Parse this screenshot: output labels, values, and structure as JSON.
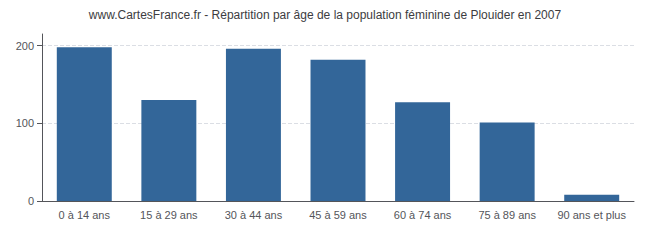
{
  "chart_data": {
    "type": "bar",
    "title": "www.CartesFrance.fr - Répartition par âge de la population féminine de Plouider en 2007",
    "categories": [
      "0 à 14 ans",
      "15 à 29 ans",
      "30 à 44 ans",
      "45 à 59 ans",
      "60 à 74 ans",
      "75 à 89 ans",
      "90 ans et plus"
    ],
    "values": [
      198,
      130,
      196,
      182,
      127,
      101,
      8
    ],
    "color": "#336699",
    "ylim": [
      0,
      215
    ],
    "yticks": [
      0,
      100,
      200
    ],
    "grid": true
  }
}
